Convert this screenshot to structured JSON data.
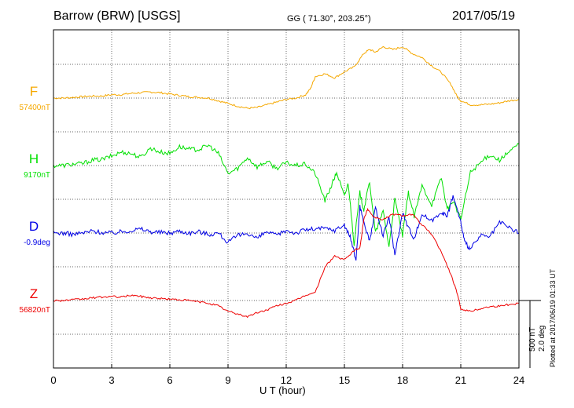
{
  "header": {
    "title": "Barrow (BRW)  [USGS]",
    "coords": "GG ( 71.30°, 203.25°)",
    "date": "2017/05/19"
  },
  "footer": {
    "plotted": "Plotted at 2017/06/19 01:33 UT",
    "scale_a": "500 nT",
    "scale_b": "2.0 deg"
  },
  "chart_data": {
    "type": "line",
    "xlabel": "U T (hour)",
    "xlim": [
      0,
      24
    ],
    "xticks": [
      0,
      3,
      6,
      9,
      12,
      15,
      18,
      21,
      24
    ],
    "scale_bar": {
      "nT": 500,
      "deg": 2.0
    },
    "series": [
      {
        "name": "F",
        "baseline_label": "57400nT",
        "color": "#f5a800",
        "x": [
          0,
          0.5,
          1,
          1.5,
          2,
          2.5,
          3,
          3.5,
          4,
          4.5,
          5,
          5.5,
          6,
          6.5,
          7,
          7.5,
          8,
          8.5,
          9,
          9.5,
          10,
          10.5,
          11,
          11.5,
          12,
          12.5,
          13,
          13.25,
          13.5,
          14,
          14.5,
          15,
          15.5,
          16,
          16.3,
          16.6,
          17,
          17.5,
          18,
          18.5,
          19,
          19.5,
          20,
          20.5,
          20.8,
          21,
          21.5,
          22,
          22.5,
          23,
          23.5,
          24
        ],
        "y": [
          0,
          0,
          5,
          10,
          15,
          15,
          25,
          25,
          35,
          40,
          45,
          40,
          30,
          20,
          10,
          5,
          0,
          -20,
          -40,
          -60,
          -75,
          -70,
          -50,
          -30,
          -10,
          0,
          25,
          70,
          160,
          180,
          150,
          195,
          230,
          330,
          360,
          340,
          380,
          360,
          380,
          330,
          300,
          240,
          190,
          100,
          15,
          -20,
          -50,
          -50,
          -45,
          -35,
          -20,
          -10
        ]
      },
      {
        "name": "H",
        "baseline_label": "9170nT",
        "color": "#00e000",
        "x": [
          0,
          0.5,
          1,
          1.5,
          2,
          2.5,
          3,
          3.5,
          4,
          4.5,
          5,
          5.5,
          6,
          6.5,
          7,
          7.5,
          8,
          8.5,
          9,
          9.5,
          10,
          10.5,
          11,
          11.5,
          12,
          12.5,
          13,
          13.5,
          14,
          14.3,
          14.6,
          15,
          15.2,
          15.5,
          15.8,
          16,
          16.3,
          16.6,
          17,
          17.3,
          17.6,
          18,
          18.3,
          18.6,
          19,
          19.5,
          20,
          20.3,
          20.6,
          21,
          21.5,
          22,
          22.5,
          23,
          23.5,
          24
        ],
        "y": [
          0,
          0,
          10,
          15,
          40,
          45,
          70,
          100,
          90,
          60,
          130,
          100,
          90,
          140,
          120,
          120,
          150,
          90,
          -60,
          -20,
          60,
          -10,
          30,
          -20,
          20,
          0,
          10,
          -60,
          -260,
          -160,
          -50,
          -230,
          -130,
          -580,
          -200,
          -330,
          -120,
          -500,
          -340,
          -600,
          -250,
          -520,
          -200,
          -380,
          -150,
          -290,
          -90,
          -330,
          -260,
          -400,
          -50,
          20,
          80,
          40,
          100,
          160
        ]
      },
      {
        "name": "D",
        "baseline_label": "-0.9deg",
        "color": "#0000e6",
        "x": [
          0,
          0.5,
          1,
          1.5,
          2,
          2.5,
          3,
          3.5,
          4,
          4.5,
          5,
          5.5,
          6,
          6.5,
          7,
          7.5,
          8,
          8.5,
          9,
          9.5,
          10,
          10.5,
          11,
          11.5,
          12,
          12.5,
          13,
          13.5,
          14,
          14.5,
          15,
          15.3,
          15.6,
          15.8,
          16,
          16.3,
          16.6,
          17,
          17.3,
          17.6,
          18,
          18.3,
          18.6,
          19,
          19.5,
          20,
          20.3,
          20.6,
          21,
          21.2,
          21.5,
          22,
          22.5,
          23,
          23.5,
          24
        ],
        "y": [
          0,
          0,
          -10,
          0,
          15,
          5,
          0,
          10,
          20,
          30,
          10,
          5,
          0,
          15,
          0,
          10,
          -10,
          0,
          -70,
          -20,
          0,
          -40,
          10,
          -20,
          20,
          0,
          25,
          30,
          35,
          20,
          60,
          -30,
          -200,
          200,
          80,
          -60,
          180,
          -20,
          120,
          -160,
          150,
          40,
          -40,
          140,
          90,
          160,
          120,
          280,
          80,
          -70,
          -120,
          -20,
          -30,
          80,
          40,
          0
        ]
      },
      {
        "name": "Z",
        "baseline_label": "56820nT",
        "color": "#ee0000",
        "x": [
          0,
          0.5,
          1,
          1.5,
          2,
          2.5,
          3,
          3.5,
          4,
          4.5,
          5,
          5.5,
          6,
          6.5,
          7,
          7.5,
          8,
          8.5,
          9,
          9.5,
          10,
          10.5,
          11,
          11.5,
          12,
          12.5,
          13,
          13.5,
          14,
          14.5,
          15,
          15.5,
          15.8,
          16,
          16.2,
          16.5,
          17,
          17.5,
          18,
          18.5,
          19,
          19.5,
          20,
          20.5,
          20.8,
          21,
          21.5,
          22,
          22.5,
          23,
          23.5,
          24
        ],
        "y": [
          0,
          0,
          5,
          10,
          20,
          25,
          30,
          25,
          40,
          30,
          20,
          15,
          10,
          5,
          0,
          -10,
          -20,
          -40,
          -80,
          -100,
          -120,
          -90,
          -70,
          -40,
          -20,
          0,
          40,
          60,
          250,
          330,
          300,
          370,
          390,
          600,
          680,
          620,
          600,
          640,
          630,
          640,
          560,
          490,
          360,
          190,
          60,
          -60,
          -80,
          -60,
          -45,
          -40,
          -30,
          -20
        ]
      }
    ]
  }
}
